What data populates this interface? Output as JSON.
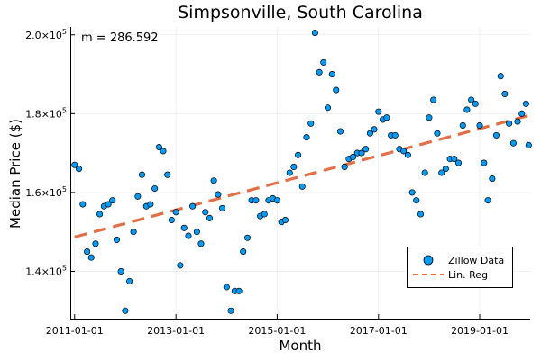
{
  "chart_data": {
    "type": "scatter",
    "title": "Simpsonville, South Carolina",
    "xlabel": "Month",
    "ylabel": "Median Price ($)",
    "annotation": "m = 286.592",
    "xlim": [
      "2010-12-01",
      "2019-12-31"
    ],
    "ylim": [
      128000,
      202000
    ],
    "grid": true,
    "legend_position": "bottom-right",
    "x_ticks": [
      "2011-01-01",
      "2013-01-01",
      "2015-01-01",
      "2017-01-01",
      "2019-01-01"
    ],
    "y_ticks": [
      {
        "value": 140000,
        "mantissa": "1.4",
        "exp": "5"
      },
      {
        "value": 160000,
        "mantissa": "1.6",
        "exp": "5"
      },
      {
        "value": 180000,
        "mantissa": "1.8",
        "exp": "5"
      },
      {
        "value": 200000,
        "mantissa": "2.0",
        "exp": "5"
      }
    ],
    "series": [
      {
        "name": "Zillow Data",
        "kind": "scatter",
        "color": "#009AF9",
        "points": [
          {
            "x": "2011-01-01",
            "y": 167000
          },
          {
            "x": "2011-02-01",
            "y": 166000
          },
          {
            "x": "2011-03-01",
            "y": 157000
          },
          {
            "x": "2011-04-01",
            "y": 145000
          },
          {
            "x": "2011-05-01",
            "y": 143500
          },
          {
            "x": "2011-06-01",
            "y": 147000
          },
          {
            "x": "2011-07-01",
            "y": 154500
          },
          {
            "x": "2011-08-01",
            "y": 156500
          },
          {
            "x": "2011-09-01",
            "y": 157000
          },
          {
            "x": "2011-10-01",
            "y": 158000
          },
          {
            "x": "2011-11-01",
            "y": 148000
          },
          {
            "x": "2011-12-01",
            "y": 140000
          },
          {
            "x": "2012-01-01",
            "y": 130000
          },
          {
            "x": "2012-02-01",
            "y": 137500
          },
          {
            "x": "2012-03-01",
            "y": 150000
          },
          {
            "x": "2012-04-01",
            "y": 159000
          },
          {
            "x": "2012-05-01",
            "y": 164500
          },
          {
            "x": "2012-06-01",
            "y": 156500
          },
          {
            "x": "2012-07-01",
            "y": 157000
          },
          {
            "x": "2012-08-01",
            "y": 161000
          },
          {
            "x": "2012-09-01",
            "y": 171500
          },
          {
            "x": "2012-10-01",
            "y": 170500
          },
          {
            "x": "2012-11-01",
            "y": 164500
          },
          {
            "x": "2012-12-01",
            "y": 153000
          },
          {
            "x": "2013-01-01",
            "y": 155000
          },
          {
            "x": "2013-02-01",
            "y": 141500
          },
          {
            "x": "2013-03-01",
            "y": 151000
          },
          {
            "x": "2013-04-01",
            "y": 149000
          },
          {
            "x": "2013-05-01",
            "y": 156500
          },
          {
            "x": "2013-06-01",
            "y": 150000
          },
          {
            "x": "2013-07-01",
            "y": 147000
          },
          {
            "x": "2013-08-01",
            "y": 155000
          },
          {
            "x": "2013-09-01",
            "y": 153500
          },
          {
            "x": "2013-10-01",
            "y": 163000
          },
          {
            "x": "2013-11-01",
            "y": 159500
          },
          {
            "x": "2013-12-01",
            "y": 156000
          },
          {
            "x": "2014-01-01",
            "y": 136000
          },
          {
            "x": "2014-02-01",
            "y": 130000
          },
          {
            "x": "2014-03-01",
            "y": 135000
          },
          {
            "x": "2014-04-01",
            "y": 135000
          },
          {
            "x": "2014-05-01",
            "y": 145000
          },
          {
            "x": "2014-06-01",
            "y": 148500
          },
          {
            "x": "2014-07-01",
            "y": 158000
          },
          {
            "x": "2014-08-01",
            "y": 158000
          },
          {
            "x": "2014-09-01",
            "y": 154000
          },
          {
            "x": "2014-10-01",
            "y": 154500
          },
          {
            "x": "2014-11-01",
            "y": 158000
          },
          {
            "x": "2014-12-01",
            "y": 158500
          },
          {
            "x": "2015-01-01",
            "y": 158000
          },
          {
            "x": "2015-02-01",
            "y": 152500
          },
          {
            "x": "2015-03-01",
            "y": 153000
          },
          {
            "x": "2015-04-01",
            "y": 165000
          },
          {
            "x": "2015-05-01",
            "y": 166500
          },
          {
            "x": "2015-06-01",
            "y": 169500
          },
          {
            "x": "2015-07-01",
            "y": 161500
          },
          {
            "x": "2015-08-01",
            "y": 174000
          },
          {
            "x": "2015-09-01",
            "y": 177500
          },
          {
            "x": "2015-10-01",
            "y": 200500
          },
          {
            "x": "2015-11-01",
            "y": 190500
          },
          {
            "x": "2015-12-01",
            "y": 193000
          },
          {
            "x": "2016-01-01",
            "y": 181500
          },
          {
            "x": "2016-02-01",
            "y": 190000
          },
          {
            "x": "2016-03-01",
            "y": 186000
          },
          {
            "x": "2016-04-01",
            "y": 175500
          },
          {
            "x": "2016-05-01",
            "y": 166500
          },
          {
            "x": "2016-06-01",
            "y": 168500
          },
          {
            "x": "2016-07-01",
            "y": 169000
          },
          {
            "x": "2016-08-01",
            "y": 170000
          },
          {
            "x": "2016-09-01",
            "y": 170000
          },
          {
            "x": "2016-10-01",
            "y": 171000
          },
          {
            "x": "2016-11-01",
            "y": 175000
          },
          {
            "x": "2016-12-01",
            "y": 176000
          },
          {
            "x": "2017-01-01",
            "y": 180500
          },
          {
            "x": "2017-02-01",
            "y": 178500
          },
          {
            "x": "2017-03-01",
            "y": 179000
          },
          {
            "x": "2017-04-01",
            "y": 174500
          },
          {
            "x": "2017-05-01",
            "y": 174500
          },
          {
            "x": "2017-06-01",
            "y": 171000
          },
          {
            "x": "2017-07-01",
            "y": 170500
          },
          {
            "x": "2017-08-01",
            "y": 169500
          },
          {
            "x": "2017-09-01",
            "y": 160000
          },
          {
            "x": "2017-10-01",
            "y": 158000
          },
          {
            "x": "2017-11-01",
            "y": 154500
          },
          {
            "x": "2017-12-01",
            "y": 165000
          },
          {
            "x": "2018-01-01",
            "y": 179000
          },
          {
            "x": "2018-02-01",
            "y": 183500
          },
          {
            "x": "2018-03-01",
            "y": 175000
          },
          {
            "x": "2018-04-01",
            "y": 165000
          },
          {
            "x": "2018-05-01",
            "y": 166000
          },
          {
            "x": "2018-06-01",
            "y": 168500
          },
          {
            "x": "2018-07-01",
            "y": 168500
          },
          {
            "x": "2018-08-01",
            "y": 167500
          },
          {
            "x": "2018-09-01",
            "y": 177000
          },
          {
            "x": "2018-10-01",
            "y": 181000
          },
          {
            "x": "2018-11-01",
            "y": 183500
          },
          {
            "x": "2018-12-01",
            "y": 182500
          },
          {
            "x": "2019-01-01",
            "y": 177000
          },
          {
            "x": "2019-02-01",
            "y": 167500
          },
          {
            "x": "2019-03-01",
            "y": 158000
          },
          {
            "x": "2019-04-01",
            "y": 163500
          },
          {
            "x": "2019-05-01",
            "y": 174500
          },
          {
            "x": "2019-06-01",
            "y": 189500
          },
          {
            "x": "2019-07-01",
            "y": 185000
          },
          {
            "x": "2019-08-01",
            "y": 177500
          },
          {
            "x": "2019-09-01",
            "y": 172500
          },
          {
            "x": "2019-10-01",
            "y": 178000
          },
          {
            "x": "2019-11-01",
            "y": 180000
          },
          {
            "x": "2019-12-01",
            "y": 182500
          },
          {
            "x": "2019-12-20",
            "y": 172000
          }
        ]
      },
      {
        "name": "Lin. Reg",
        "kind": "line",
        "color": "#E26F46",
        "dash": "dashed",
        "points": [
          {
            "x": "2011-01-01",
            "y": 148700
          },
          {
            "x": "2019-12-20",
            "y": 179500
          }
        ]
      }
    ]
  }
}
